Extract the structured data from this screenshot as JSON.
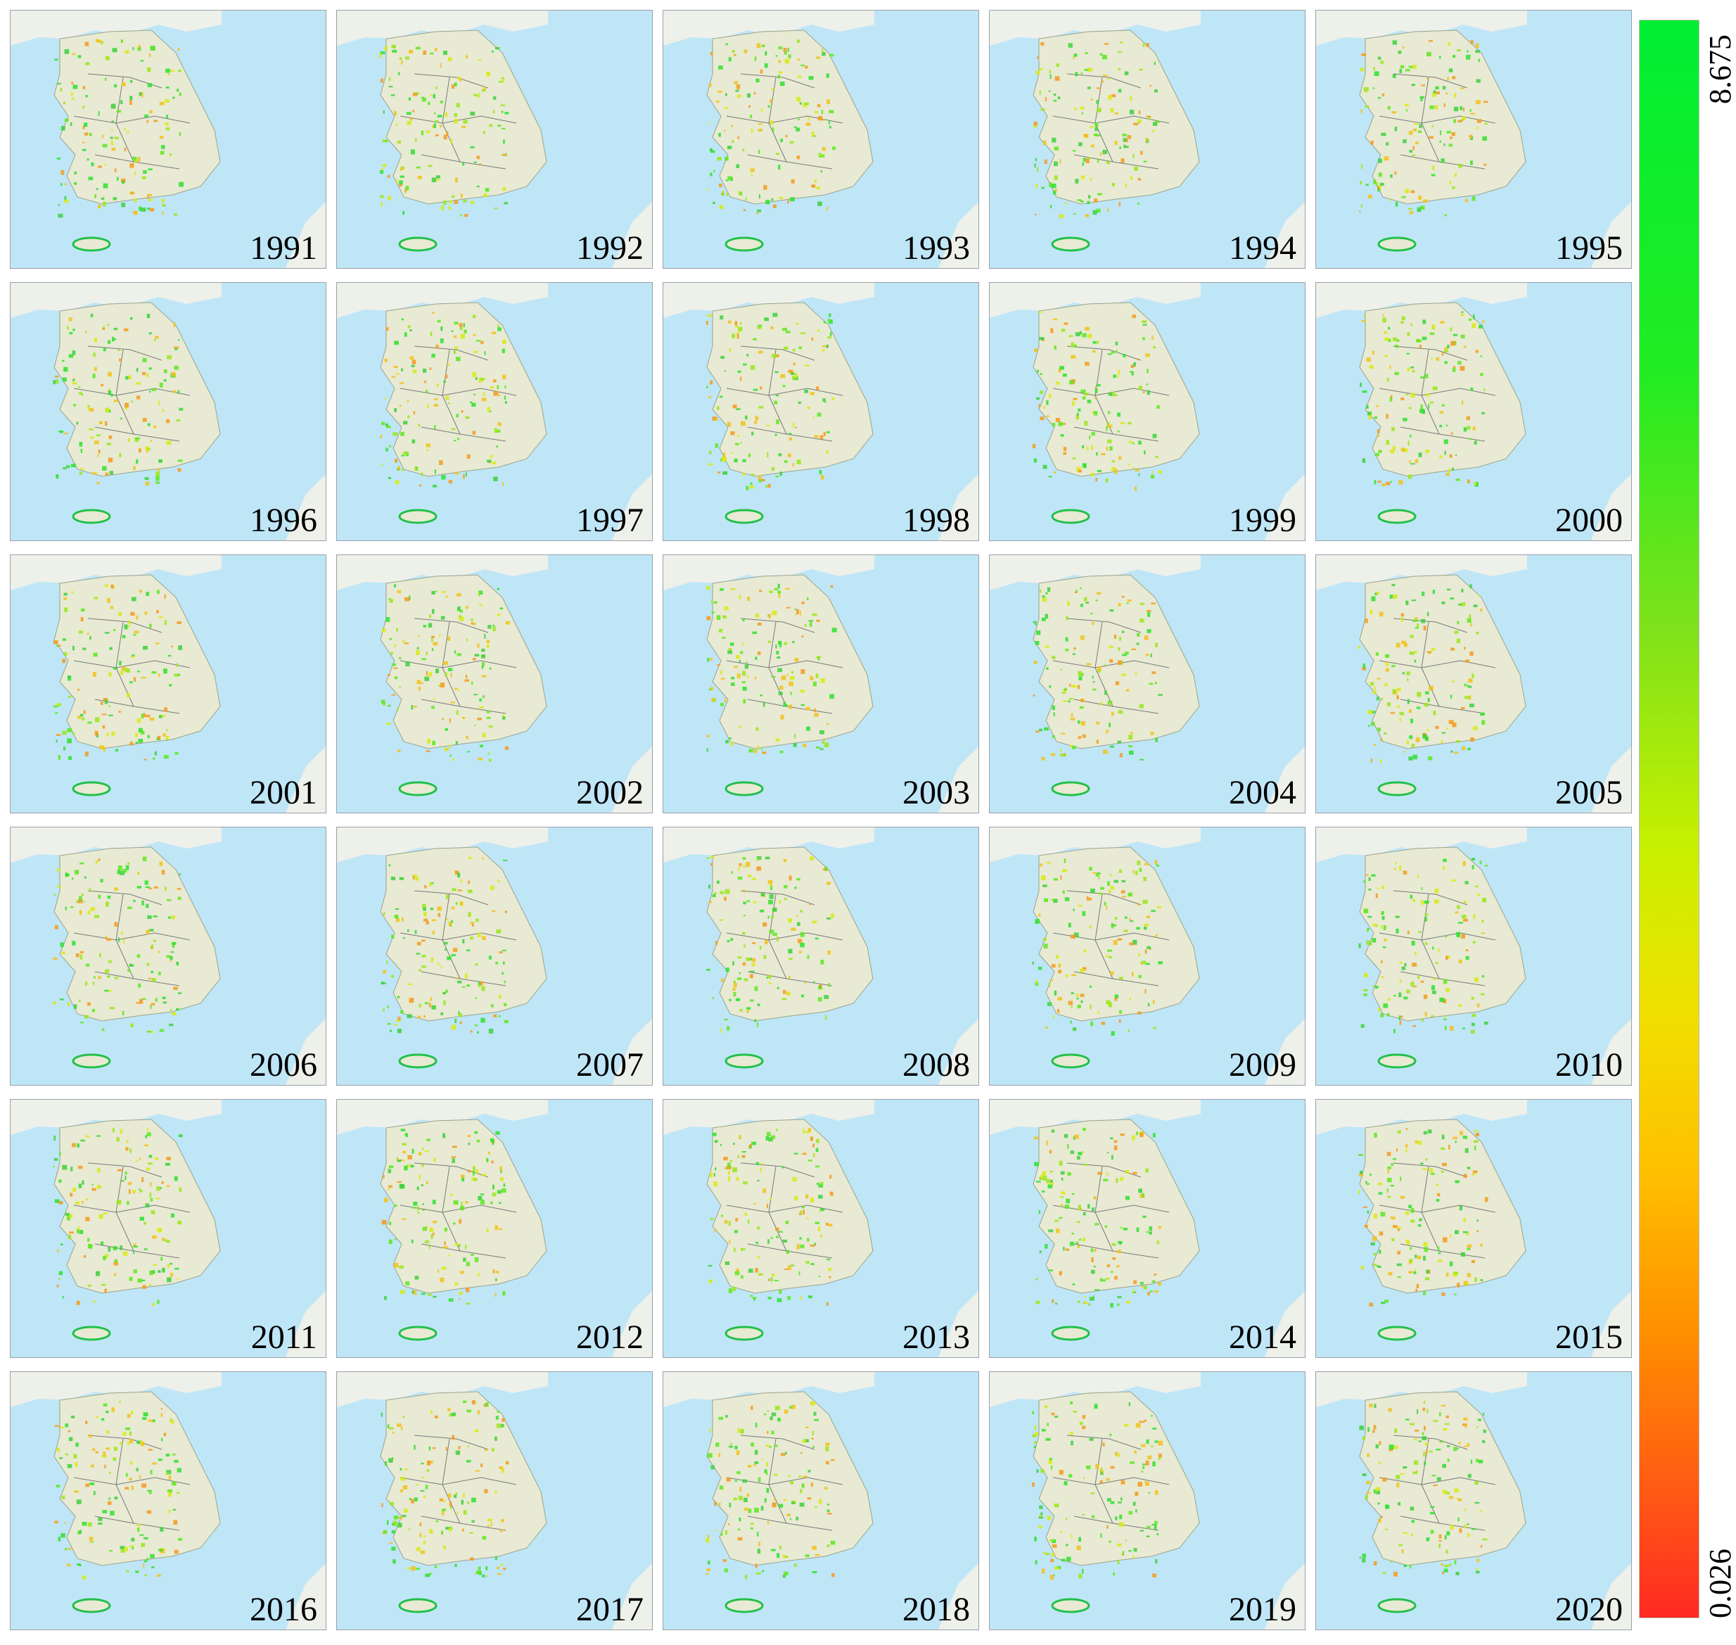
{
  "years": [
    "1991",
    "1992",
    "1993",
    "1994",
    "1995",
    "1996",
    "1997",
    "1998",
    "1999",
    "2000",
    "2001",
    "2002",
    "2003",
    "2004",
    "2005",
    "2006",
    "2007",
    "2008",
    "2009",
    "2010",
    "2011",
    "2012",
    "2013",
    "2014",
    "2015",
    "2016",
    "2017",
    "2018",
    "2019",
    "2020"
  ],
  "colorbar": {
    "max_label": "8.675",
    "min_label": "0.026",
    "colors": {
      "high": "#00ee33",
      "mid": "#f0e000",
      "low": "#ff2a22"
    }
  },
  "colors": {
    "sea": "#bfe6f7",
    "land": "#e8ead3",
    "border": "#7a7a7a"
  }
}
